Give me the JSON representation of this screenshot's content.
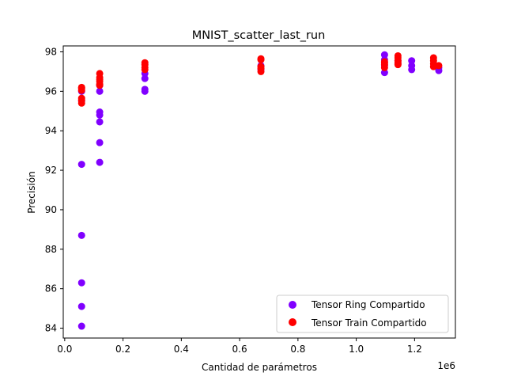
{
  "chart_data": {
    "type": "scatter",
    "title": "MNIST_scatter_last_run",
    "xlabel": "Cantidad de parámetros",
    "ylabel": "Precisión",
    "x_offset_label": "1e6",
    "xlim": [
      -0.005,
      1.34
    ],
    "ylim": [
      83.5,
      98.3
    ],
    "xticks": [
      0.0,
      0.2,
      0.4,
      0.6,
      0.8,
      1.0,
      1.2
    ],
    "xtick_labels": [
      "0.0",
      "0.2",
      "0.4",
      "0.6",
      "0.8",
      "1.0",
      "1.2"
    ],
    "yticks": [
      84,
      86,
      88,
      90,
      92,
      94,
      96,
      98
    ],
    "ytick_labels": [
      "84",
      "86",
      "88",
      "90",
      "92",
      "94",
      "96",
      "98"
    ],
    "grid": false,
    "legend_position": "bottom-right",
    "series": [
      {
        "name": "Tensor Ring Compartido",
        "color": "#8000ff",
        "points": [
          [
            0.058,
            84.1
          ],
          [
            0.058,
            85.1
          ],
          [
            0.058,
            86.3
          ],
          [
            0.058,
            88.7
          ],
          [
            0.058,
            92.3
          ],
          [
            0.058,
            95.5
          ],
          [
            0.058,
            96.0
          ],
          [
            0.12,
            92.4
          ],
          [
            0.12,
            93.4
          ],
          [
            0.12,
            94.45
          ],
          [
            0.12,
            94.8
          ],
          [
            0.12,
            94.95
          ],
          [
            0.12,
            96.0
          ],
          [
            0.12,
            96.3
          ],
          [
            0.275,
            96.0
          ],
          [
            0.275,
            96.1
          ],
          [
            0.275,
            96.65
          ],
          [
            0.275,
            96.9
          ],
          [
            0.673,
            97.1
          ],
          [
            0.673,
            97.3
          ],
          [
            1.097,
            96.95
          ],
          [
            1.097,
            97.3
          ],
          [
            1.097,
            97.6
          ],
          [
            1.097,
            97.85
          ],
          [
            1.143,
            97.4
          ],
          [
            1.143,
            97.55
          ],
          [
            1.19,
            97.1
          ],
          [
            1.19,
            97.3
          ],
          [
            1.19,
            97.55
          ],
          [
            1.283,
            97.05
          ],
          [
            1.283,
            97.2
          ]
        ]
      },
      {
        "name": "Tensor Train Compartido",
        "color": "#ff0000",
        "points": [
          [
            0.058,
            95.4
          ],
          [
            0.058,
            95.55
          ],
          [
            0.058,
            95.65
          ],
          [
            0.058,
            96.05
          ],
          [
            0.058,
            96.15
          ],
          [
            0.058,
            96.2
          ],
          [
            0.12,
            96.3
          ],
          [
            0.12,
            96.35
          ],
          [
            0.12,
            96.5
          ],
          [
            0.12,
            96.6
          ],
          [
            0.12,
            96.7
          ],
          [
            0.12,
            96.9
          ],
          [
            0.275,
            97.1
          ],
          [
            0.275,
            97.2
          ],
          [
            0.275,
            97.35
          ],
          [
            0.275,
            97.45
          ],
          [
            0.673,
            97.0
          ],
          [
            0.673,
            97.15
          ],
          [
            0.673,
            97.25
          ],
          [
            0.673,
            97.6
          ],
          [
            0.673,
            97.65
          ],
          [
            1.097,
            97.2
          ],
          [
            1.097,
            97.35
          ],
          [
            1.097,
            97.45
          ],
          [
            1.097,
            97.5
          ],
          [
            1.143,
            97.35
          ],
          [
            1.143,
            97.45
          ],
          [
            1.143,
            97.55
          ],
          [
            1.143,
            97.7
          ],
          [
            1.143,
            97.8
          ],
          [
            1.265,
            97.25
          ],
          [
            1.265,
            97.4
          ],
          [
            1.265,
            97.55
          ],
          [
            1.265,
            97.7
          ],
          [
            1.283,
            97.3
          ]
        ]
      }
    ]
  }
}
